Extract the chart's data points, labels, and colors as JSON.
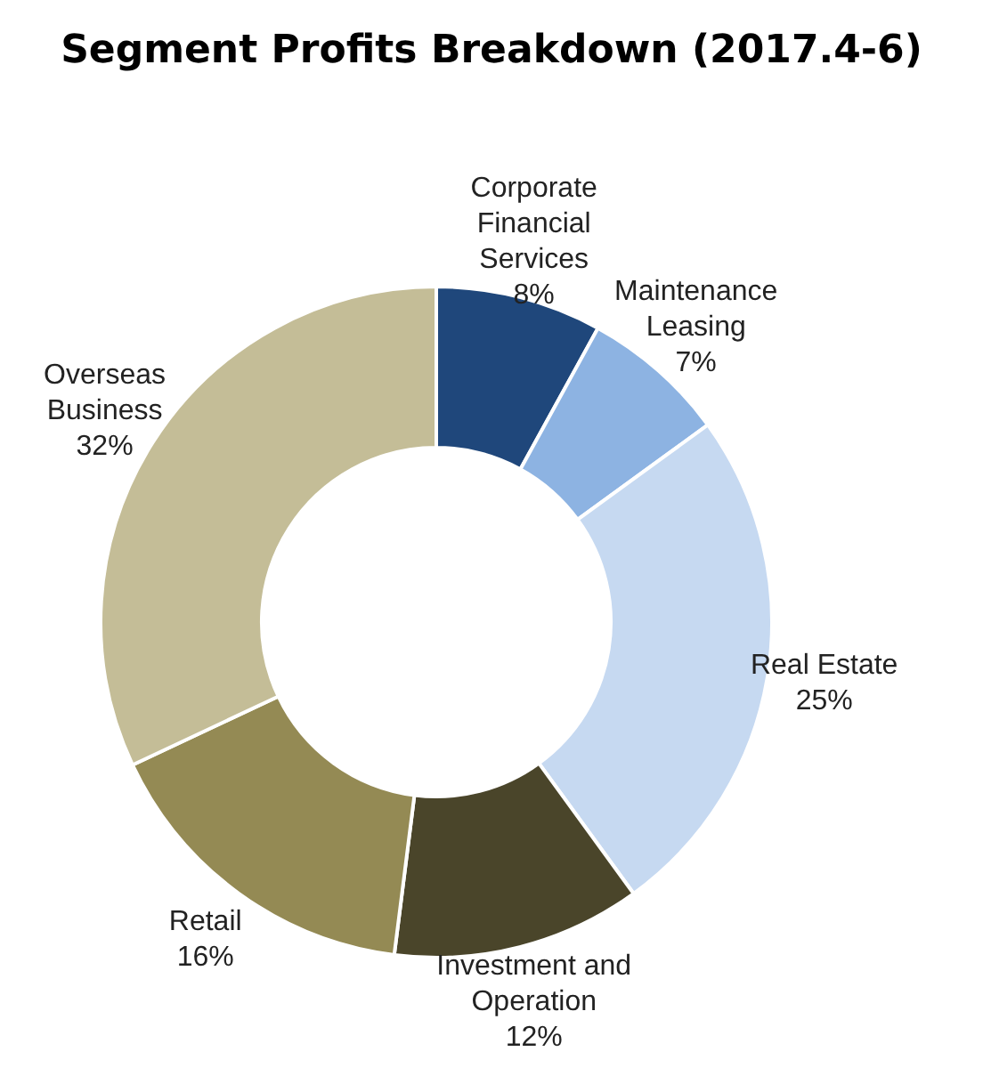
{
  "chart_data": {
    "type": "donut",
    "title": "Segment Profits Breakdown (2017.4-6)",
    "categories": [
      "Corporate Financial Services",
      "Maintenance Leasing",
      "Real Estate",
      "Investment and Operation",
      "Retail",
      "Overseas Business"
    ],
    "values": [
      8,
      7,
      25,
      12,
      16,
      32
    ],
    "colors": [
      "#1f477b",
      "#8db3e2",
      "#c6d9f1",
      "#4a452a",
      "#948a54",
      "#c4bd97"
    ],
    "value_labels": [
      "8%",
      "7%",
      "25%",
      "12%",
      "16%",
      "32%"
    ],
    "legend": false
  }
}
